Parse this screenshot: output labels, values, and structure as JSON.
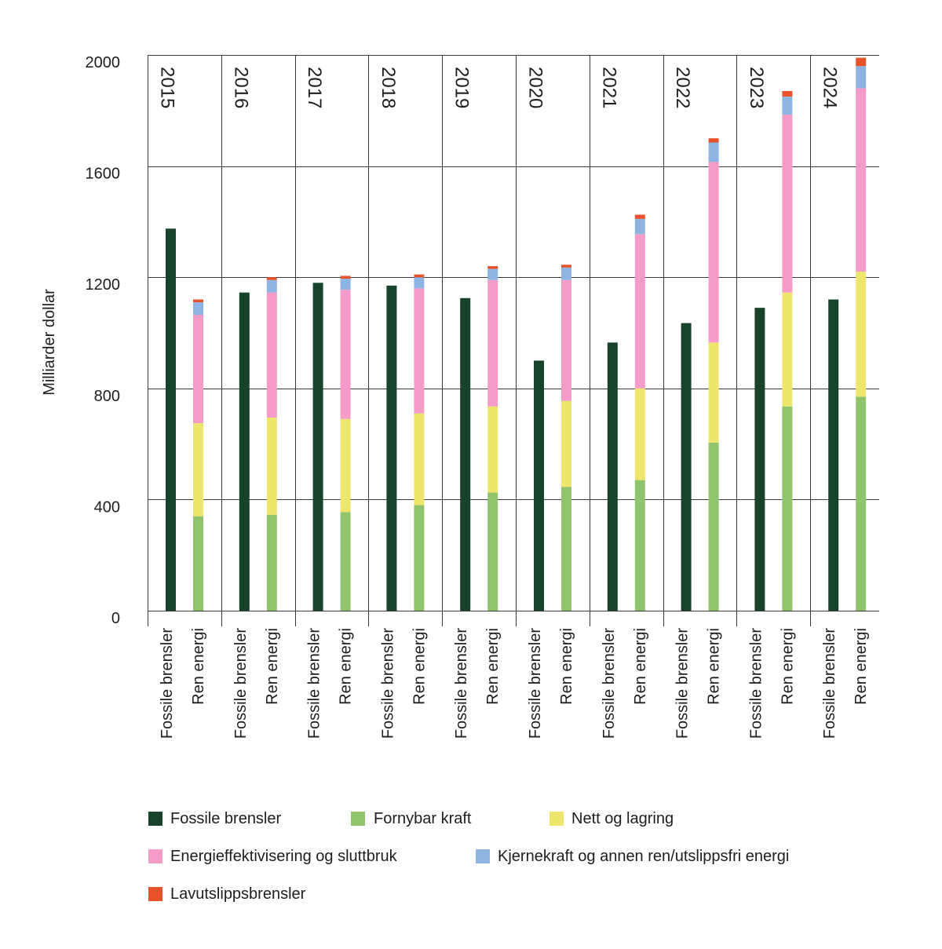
{
  "chart_data": {
    "type": "bar",
    "stacked": true,
    "title": "",
    "xlabel": "",
    "ylabel": "Milliarder dollar",
    "ylim": [
      0,
      2000
    ],
    "yticks": [
      0,
      400,
      800,
      1200,
      1600,
      2000
    ],
    "grid": true,
    "legend_position": "bottom",
    "categories": [
      "2015",
      "2016",
      "2017",
      "2018",
      "2019",
      "2020",
      "2021",
      "2022",
      "2023",
      "2024"
    ],
    "bar_groups": [
      "Fossile brensler",
      "Ren energi"
    ],
    "series": [
      {
        "name": "Fossile brensler",
        "group": 0,
        "color": "#17432b",
        "values": [
          1375,
          1145,
          1180,
          1170,
          1125,
          900,
          965,
          1035,
          1090,
          1120
        ]
      },
      {
        "name": "Fornybar kraft",
        "group": 1,
        "color": "#8fc36c",
        "values": [
          340,
          345,
          355,
          380,
          425,
          445,
          470,
          605,
          735,
          770
        ]
      },
      {
        "name": "Nett og lagring",
        "group": 1,
        "color": "#eee56c",
        "values": [
          335,
          350,
          335,
          330,
          310,
          310,
          330,
          360,
          410,
          450
        ]
      },
      {
        "name": "Energieffektivisering og sluttbruk",
        "group": 1,
        "color": "#f49bc8",
        "values": [
          390,
          450,
          465,
          450,
          455,
          435,
          555,
          650,
          640,
          660
        ]
      },
      {
        "name": "Kjernekraft og annen ren/utslippsfri energi",
        "group": 1,
        "color": "#8db4e2",
        "values": [
          45,
          45,
          40,
          40,
          40,
          45,
          55,
          70,
          65,
          80
        ]
      },
      {
        "name": "Lavutslippsbrensler",
        "group": 1,
        "color": "#e8522b",
        "values": [
          10,
          10,
          10,
          10,
          10,
          10,
          15,
          15,
          20,
          30
        ]
      }
    ]
  }
}
